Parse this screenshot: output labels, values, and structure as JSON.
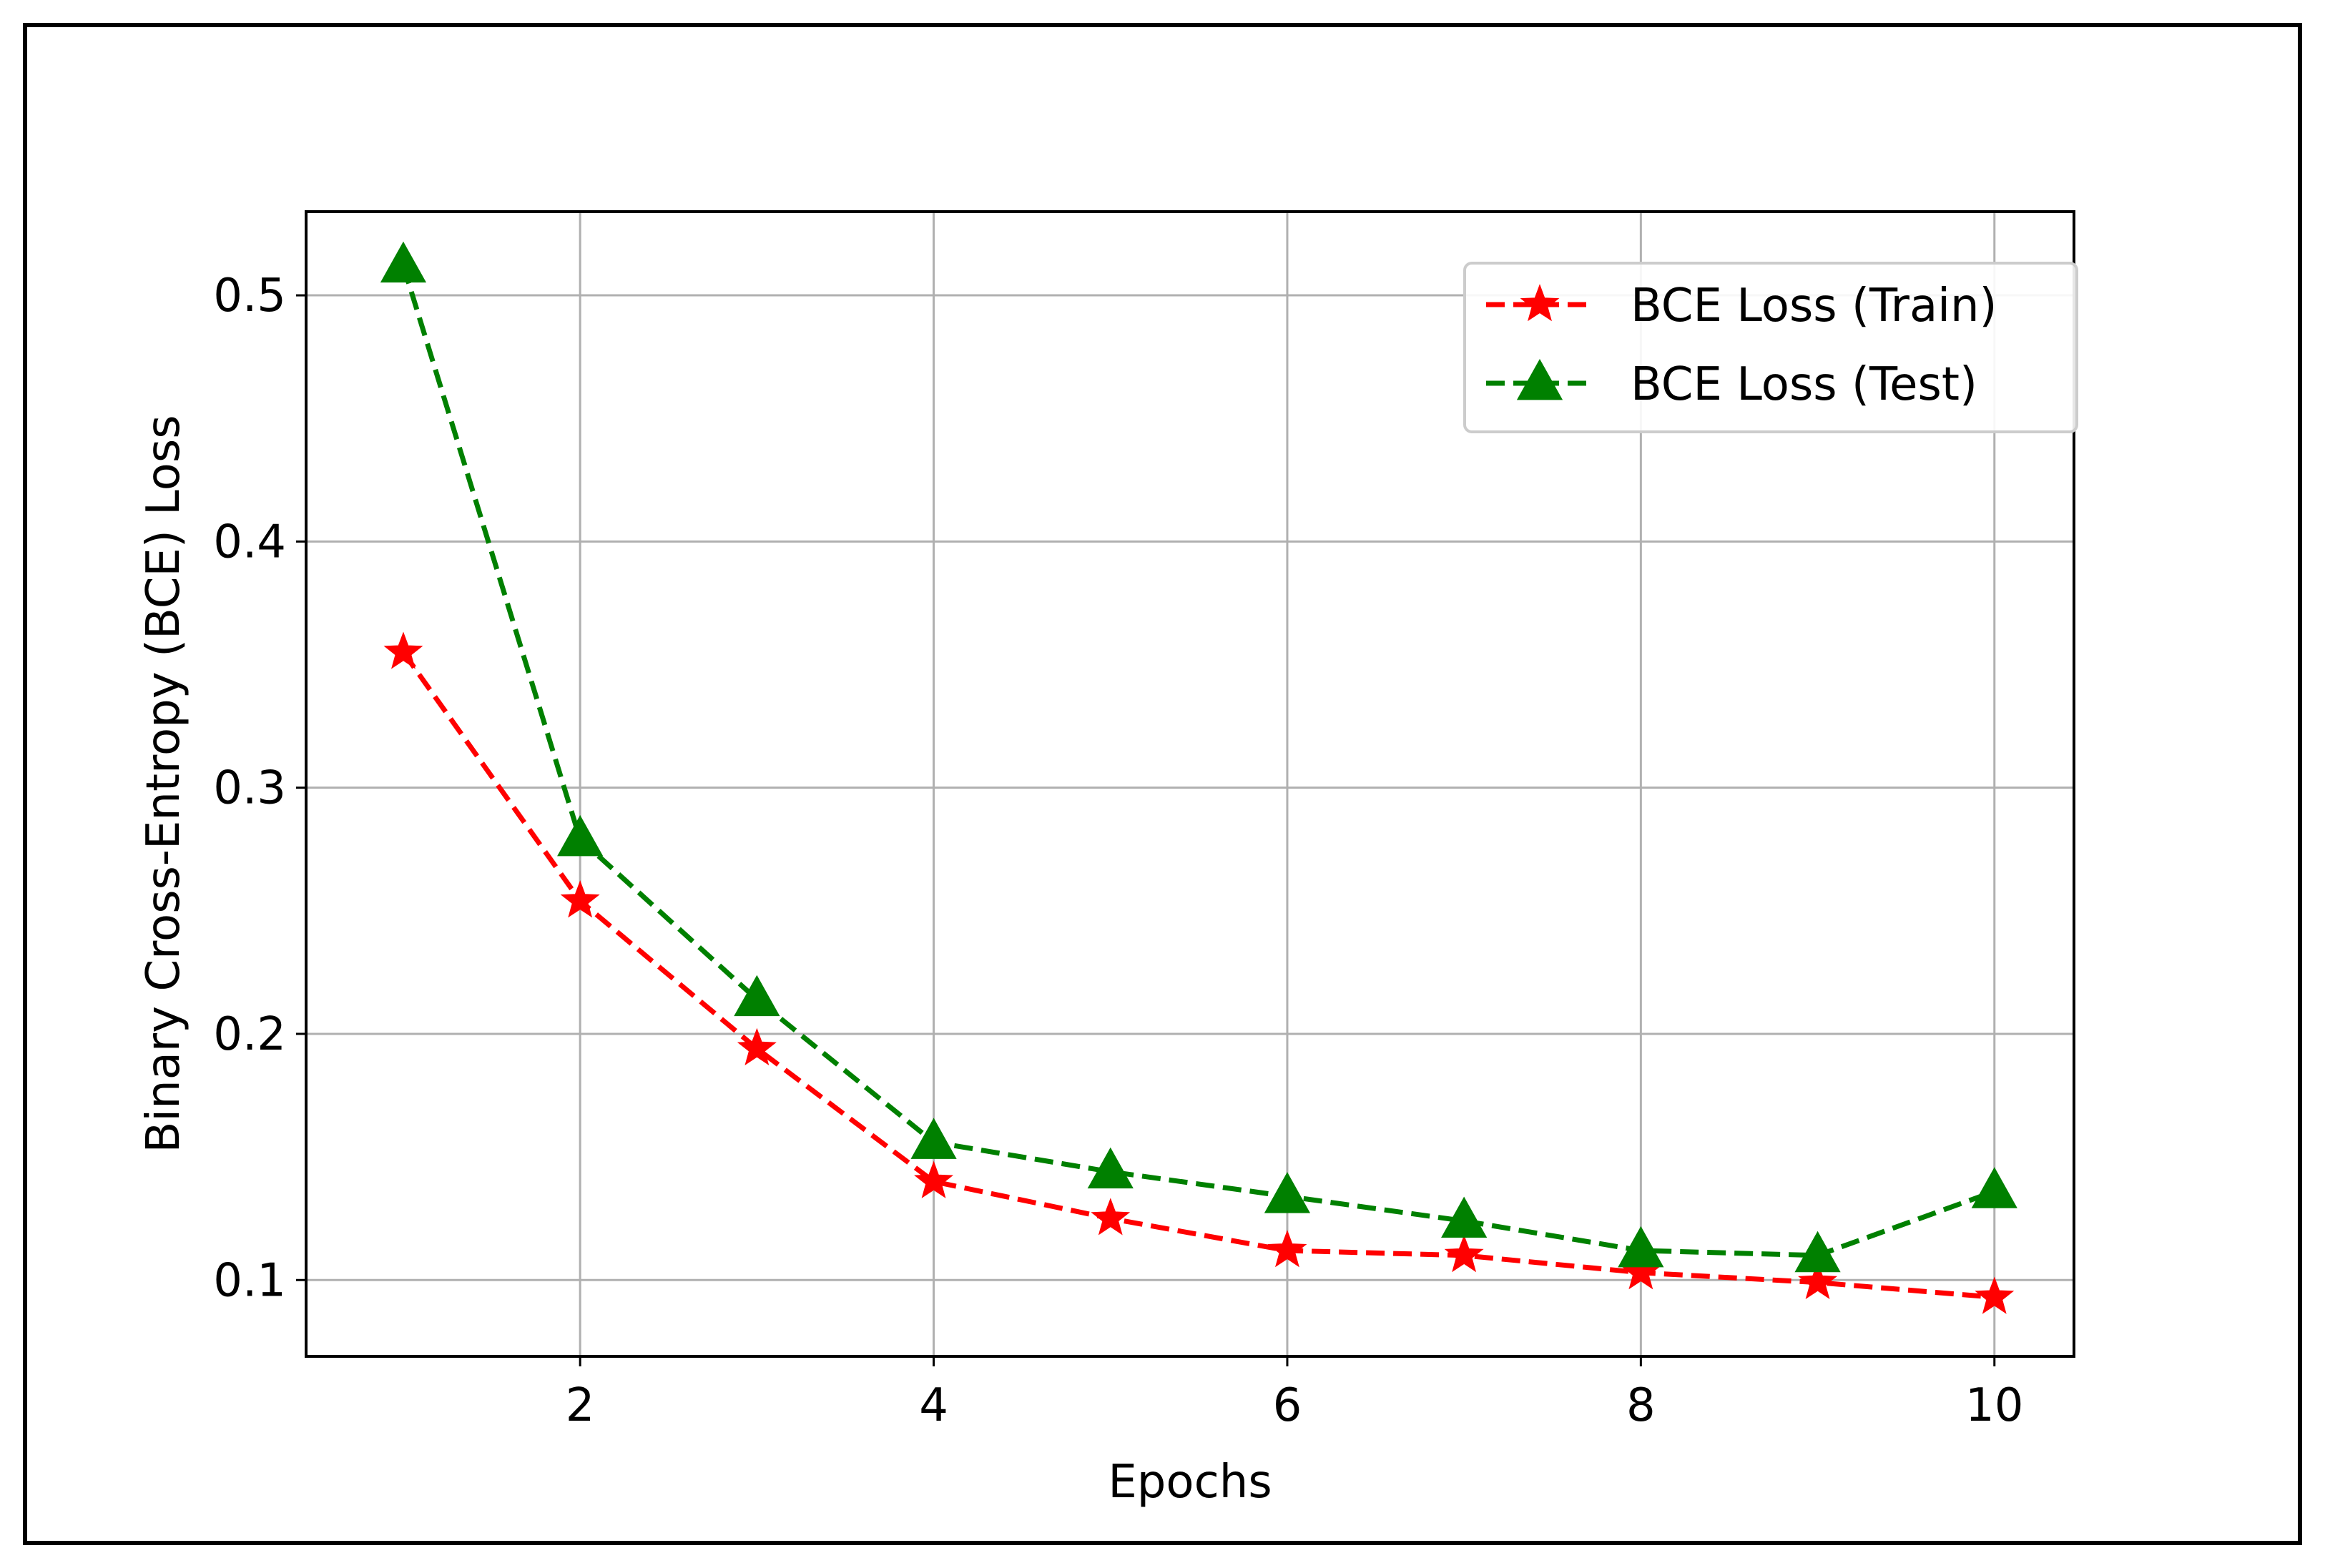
{
  "chart_data": {
    "type": "line",
    "title": "",
    "xlabel": "Epochs",
    "ylabel": "Binary Cross-Entropy (BCE) Loss",
    "x": [
      1,
      2,
      3,
      4,
      5,
      6,
      7,
      8,
      9,
      10
    ],
    "xlim": [
      0.45,
      10.45
    ],
    "ylim": [
      0.069,
      0.534
    ],
    "xticks": [
      2,
      4,
      6,
      8,
      10
    ],
    "xtick_labels": [
      "2",
      "4",
      "6",
      "8",
      "10"
    ],
    "yticks": [
      0.1,
      0.2,
      0.3,
      0.4,
      0.5
    ],
    "ytick_labels": [
      "0.1",
      "0.2",
      "0.3",
      "0.4",
      "0.5"
    ],
    "grid": true,
    "legend_position": "top-right",
    "series": [
      {
        "name": "BCE Loss (Train)",
        "color": "#ff0000",
        "marker": "star",
        "linestyle": "dashed",
        "values": [
          0.355,
          0.254,
          0.194,
          0.14,
          0.125,
          0.112,
          0.11,
          0.103,
          0.099,
          0.093
        ]
      },
      {
        "name": "BCE Loss (Test)",
        "color": "#008000",
        "marker": "triangle",
        "linestyle": "dashed",
        "values": [
          0.512,
          0.279,
          0.214,
          0.156,
          0.144,
          0.134,
          0.124,
          0.112,
          0.11,
          0.136
        ]
      }
    ]
  }
}
